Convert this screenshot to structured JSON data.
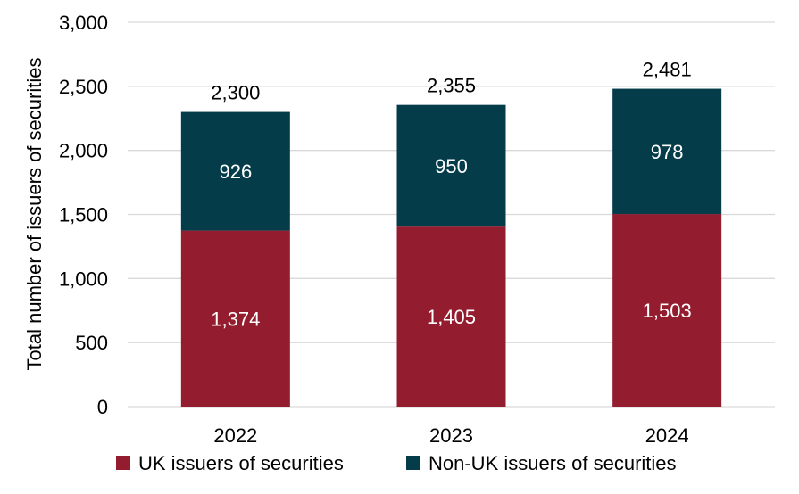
{
  "chart_data": {
    "type": "bar",
    "stacked": true,
    "categories": [
      "2022",
      "2023",
      "2024"
    ],
    "series": [
      {
        "name": "UK issuers of securities",
        "values": [
          1374,
          1405,
          1503
        ],
        "color": "#931c2f",
        "label_color": "#ffffff"
      },
      {
        "name": "Non-UK issuers of securities",
        "values": [
          926,
          950,
          978
        ],
        "color": "#043c4a",
        "label_color": "#ffffff"
      }
    ],
    "totals": [
      2300,
      2355,
      2481
    ],
    "title": "",
    "xlabel": "",
    "ylabel": "Total number of issuers of securities",
    "ylim": [
      0,
      3000
    ],
    "yticks": [
      0,
      500,
      1000,
      1500,
      2000,
      2500,
      3000
    ],
    "grid": true,
    "gridline_color": "#d9d9d9",
    "legend_position": "bottom"
  }
}
